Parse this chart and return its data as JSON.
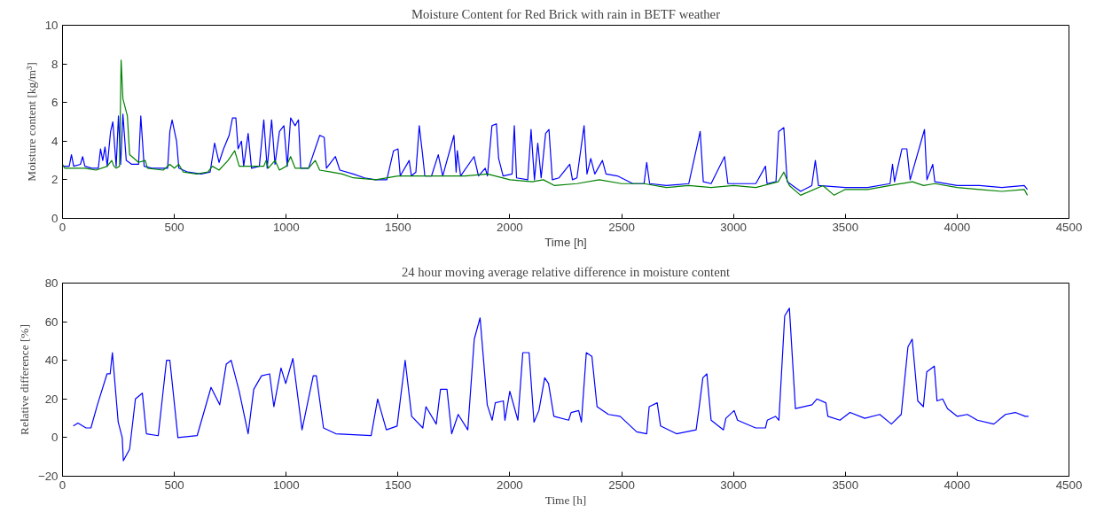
{
  "chart_data": [
    {
      "type": "line",
      "title": "Moisture Content for Red Brick with rain in BETF weather",
      "xlabel": "Time [h]",
      "ylabel": "Moisture content [kg/m³]",
      "xlim": [
        0,
        4500
      ],
      "ylim": [
        0,
        10
      ],
      "xticks": [
        0,
        500,
        1000,
        1500,
        2000,
        2500,
        3000,
        3500,
        4000,
        4500
      ],
      "yticks": [
        0,
        2,
        4,
        6,
        8,
        10
      ],
      "line_style": "solid",
      "series": [
        {
          "color": "#0000ff",
          "x": [
            0,
            30,
            40,
            50,
            80,
            90,
            100,
            130,
            160,
            170,
            180,
            190,
            200,
            215,
            225,
            240,
            250,
            260,
            270,
            285,
            310,
            340,
            350,
            365,
            400,
            440,
            470,
            480,
            490,
            510,
            520,
            560,
            620,
            660,
            680,
            700,
            720,
            745,
            760,
            775,
            785,
            800,
            810,
            830,
            845,
            880,
            900,
            915,
            935,
            950,
            970,
            990,
            1005,
            1020,
            1040,
            1055,
            1065,
            1100,
            1150,
            1170,
            1180,
            1220,
            1240,
            1300,
            1350,
            1400,
            1450,
            1480,
            1500,
            1510,
            1550,
            1560,
            1580,
            1595,
            1610,
            1620,
            1650,
            1680,
            1700,
            1750,
            1760,
            1765,
            1780,
            1840,
            1860,
            1890,
            1900,
            1920,
            1940,
            1950,
            1970,
            2010,
            2020,
            2030,
            2080,
            2095,
            2110,
            2125,
            2140,
            2160,
            2175,
            2190,
            2220,
            2268,
            2280,
            2300,
            2332,
            2345,
            2362,
            2380,
            2414,
            2430,
            2481,
            2550,
            2600,
            2612,
            2625,
            2700,
            2800,
            2838,
            2851,
            2865,
            2900,
            2960,
            2975,
            3100,
            3143,
            3150,
            3190,
            3202,
            3225,
            3240,
            3300,
            3350,
            3366,
            3380,
            3500,
            3600,
            3700,
            3711,
            3720,
            3753,
            3775,
            3790,
            3854,
            3865,
            3891,
            3900,
            4000,
            4100,
            4200,
            4300,
            4314
          ],
          "values": [
            2.7,
            2.7,
            3.3,
            2.7,
            2.8,
            3.2,
            2.7,
            2.6,
            2.6,
            3.6,
            3.0,
            3.7,
            2.7,
            4.5,
            5.0,
            2.7,
            5.3,
            2.8,
            5.4,
            3.0,
            2.8,
            2.8,
            5.3,
            2.7,
            2.6,
            2.6,
            2.6,
            4.5,
            5.1,
            4.0,
            2.6,
            2.4,
            2.3,
            2.4,
            3.9,
            2.9,
            3.6,
            4.3,
            5.2,
            5.2,
            3.6,
            4.0,
            2.7,
            4.4,
            2.6,
            2.7,
            5.1,
            2.6,
            5.1,
            2.8,
            4.5,
            4.8,
            2.7,
            5.2,
            4.8,
            5.1,
            2.6,
            2.6,
            4.3,
            4.2,
            2.6,
            3.2,
            2.5,
            2.3,
            2.1,
            2.0,
            2.0,
            3.5,
            3.6,
            2.2,
            3.0,
            2.2,
            2.4,
            4.8,
            3.3,
            2.2,
            2.2,
            3.3,
            2.2,
            4.3,
            2.4,
            3.5,
            2.2,
            3.2,
            2.2,
            2.6,
            2.2,
            4.8,
            4.9,
            3.1,
            2.2,
            2.3,
            4.8,
            2.1,
            2.0,
            4.6,
            2.0,
            3.9,
            2.1,
            4.4,
            4.6,
            2.0,
            2.1,
            2.8,
            2.0,
            2.1,
            4.8,
            2.3,
            3.1,
            2.3,
            3.0,
            2.3,
            2.2,
            1.8,
            1.8,
            2.9,
            1.8,
            1.7,
            1.8,
            3.8,
            4.5,
            1.9,
            1.8,
            3.2,
            1.8,
            1.8,
            2.7,
            1.8,
            1.9,
            4.5,
            4.7,
            1.9,
            1.4,
            1.7,
            3.0,
            1.7,
            1.6,
            1.6,
            1.8,
            2.8,
            1.9,
            3.6,
            3.6,
            2.0,
            4.6,
            2.0,
            2.8,
            1.9,
            1.7,
            1.7,
            1.6,
            1.7,
            1.5
          ]
        },
        {
          "color": "#008000",
          "x": [
            0,
            10,
            100,
            150,
            200,
            220,
            230,
            240,
            255,
            262,
            270,
            290,
            300,
            340,
            370,
            380,
            450,
            480,
            500,
            520,
            540,
            600,
            650,
            670,
            700,
            740,
            770,
            790,
            900,
            910,
            920,
            950,
            970,
            1000,
            1020,
            1040,
            1100,
            1130,
            1150,
            1200,
            1250,
            1300,
            1400,
            1500,
            1600,
            1700,
            1800,
            1900,
            2000,
            2100,
            2150,
            2200,
            2300,
            2400,
            2500,
            2600,
            2700,
            2800,
            2900,
            3000,
            3100,
            3200,
            3225,
            3250,
            3300,
            3400,
            3450,
            3500,
            3600,
            3700,
            3800,
            3850,
            3900,
            4000,
            4100,
            4200,
            4300,
            4314
          ],
          "values": [
            2.8,
            2.6,
            2.6,
            2.5,
            2.7,
            3.0,
            2.7,
            2.6,
            2.7,
            8.2,
            6.2,
            5.3,
            3.3,
            2.9,
            3.0,
            2.6,
            2.5,
            2.8,
            2.6,
            2.8,
            2.4,
            2.3,
            2.4,
            2.7,
            2.5,
            3.0,
            3.5,
            2.7,
            2.7,
            3.0,
            2.6,
            3.0,
            2.5,
            2.7,
            3.2,
            2.6,
            2.6,
            3.0,
            2.5,
            2.4,
            2.3,
            2.1,
            2.0,
            2.2,
            2.2,
            2.2,
            2.2,
            2.3,
            2.0,
            1.9,
            2.0,
            1.7,
            1.8,
            2.0,
            1.8,
            1.8,
            1.6,
            1.7,
            1.6,
            1.7,
            1.6,
            1.9,
            2.4,
            1.7,
            1.2,
            1.7,
            1.2,
            1.5,
            1.5,
            1.7,
            1.9,
            1.7,
            1.8,
            1.6,
            1.5,
            1.4,
            1.5,
            1.2
          ]
        }
      ]
    },
    {
      "type": "line",
      "title": "24 hour moving average relative difference in moisture content",
      "xlabel": "Time [h]",
      "ylabel": "Relative difference [%]",
      "xlim": [
        0,
        4500
      ],
      "ylim": [
        -20,
        80
      ],
      "xticks": [
        0,
        500,
        1000,
        1500,
        2000,
        2500,
        3000,
        3500,
        4000,
        4500
      ],
      "yticks": [
        -20,
        0,
        20,
        40,
        60,
        80
      ],
      "line_style": "solid",
      "series": [
        {
          "color": "#0000ff",
          "x": [
            48,
            69,
            105,
            127,
            156,
            199,
            213,
            223,
            249,
            267,
            272,
            300,
            326,
            357,
            375,
            428,
            465,
            480,
            516,
            602,
            664,
            703,
            732,
            754,
            790,
            830,
            855,
            890,
            926,
            945,
            977,
            998,
            1030,
            1071,
            1121,
            1135,
            1167,
            1222,
            1380,
            1409,
            1448,
            1496,
            1532,
            1561,
            1611,
            1625,
            1671,
            1690,
            1719,
            1740,
            1769,
            1812,
            1841,
            1867,
            1899,
            1921,
            1935,
            1971,
            1978,
            2000,
            2036,
            2058,
            2086,
            2108,
            2130,
            2156,
            2173,
            2197,
            2263,
            2274,
            2308,
            2320,
            2342,
            2367,
            2390,
            2441,
            2493,
            2567,
            2612,
            2623,
            2659,
            2674,
            2745,
            2833,
            2848,
            2863,
            2881,
            2900,
            2955,
            2966,
            3003,
            3018,
            3099,
            3143,
            3151,
            3188,
            3203,
            3229,
            3250,
            3277,
            3351,
            3373,
            3413,
            3422,
            3476,
            3521,
            3587,
            3654,
            3706,
            3750,
            3780,
            3799,
            3824,
            3849,
            3864,
            3898,
            3910,
            3935,
            3957,
            4001,
            4046,
            4090,
            4164,
            4216,
            4260,
            4304,
            4319
          ],
          "values": [
            6,
            7.5,
            5,
            5,
            17,
            33,
            33,
            44,
            8,
            0,
            -12,
            -6,
            20,
            23,
            2,
            1,
            40,
            40,
            0,
            1,
            26,
            17,
            38,
            40,
            24,
            2,
            25,
            32,
            33,
            16,
            36,
            28,
            41,
            4,
            32,
            32,
            5,
            2,
            1,
            20,
            4,
            6,
            40,
            11,
            5,
            16,
            7,
            25,
            25,
            2,
            12,
            4,
            51,
            62,
            17,
            9,
            18,
            19,
            9,
            24,
            9,
            44,
            44,
            8,
            14,
            31,
            28,
            11,
            9,
            13,
            14,
            8,
            44,
            42,
            16,
            12,
            11,
            3,
            2,
            16,
            18,
            6,
            2,
            4,
            17,
            31,
            33,
            9,
            4,
            10,
            14,
            9,
            5,
            5,
            9,
            11,
            9,
            63,
            67,
            15,
            17,
            20,
            18,
            11,
            9,
            13,
            10,
            12,
            7,
            12,
            47,
            51,
            19,
            16,
            34,
            37,
            19,
            20,
            15,
            11,
            12,
            9,
            7,
            12,
            13,
            11,
            11
          ]
        }
      ]
    }
  ]
}
